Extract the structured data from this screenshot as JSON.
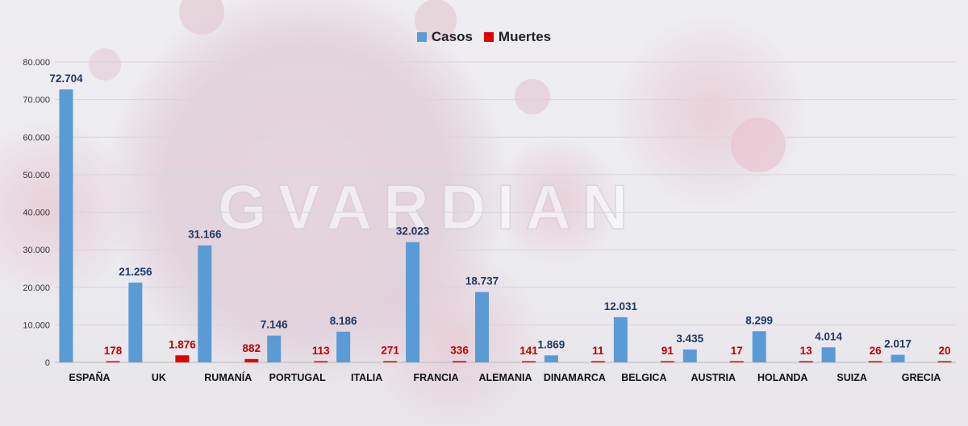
{
  "watermark": "GVARDIAN",
  "colors": {
    "casos": "#5b9bd5",
    "muertes": "#e00000",
    "casos_label": "#1f3864",
    "muertes_label": "#c00000"
  },
  "legend": [
    {
      "label": "Casos",
      "color": "#5b9bd5"
    },
    {
      "label": "Muertes",
      "color": "#e00000"
    }
  ],
  "chart_data": {
    "type": "bar",
    "title": "",
    "xlabel": "",
    "ylabel": "",
    "ylim": [
      0,
      80000
    ],
    "yticks": [
      0,
      10000,
      20000,
      30000,
      40000,
      50000,
      60000,
      70000,
      80000
    ],
    "ytick_labels": [
      "0",
      "10.000",
      "20.000",
      "30.000",
      "40.000",
      "50.000",
      "60.000",
      "70.000",
      "80.000"
    ],
    "grid": true,
    "legend_position": "top-center",
    "categories": [
      "ESPAÑA",
      "UK",
      "RUMANÍA",
      "PORTUGAL",
      "ITALIA",
      "FRANCIA",
      "ALEMANIA",
      "DINAMARCA",
      "BELGICA",
      "AUSTRIA",
      "HOLANDA",
      "SUIZA",
      "GRECIA"
    ],
    "series": [
      {
        "name": "Casos",
        "values": [
          72704,
          21256,
          31166,
          7146,
          8186,
          32023,
          18737,
          1869,
          12031,
          3435,
          8299,
          4014,
          2017
        ],
        "labels": [
          "72.704",
          "21.256",
          "31.166",
          "7.146",
          "8.186",
          "32.023",
          "18.737",
          "1.869",
          "12.031",
          "3.435",
          "8.299",
          "4.014",
          "2.017"
        ]
      },
      {
        "name": "Muertes",
        "values": [
          178,
          1876,
          882,
          113,
          271,
          336,
          141,
          11,
          91,
          17,
          13,
          26,
          20
        ],
        "labels": [
          "178",
          "1.876",
          "882",
          "113",
          "271",
          "336",
          "141",
          "11",
          "91",
          "17",
          "13",
          "26",
          "20"
        ]
      }
    ]
  }
}
